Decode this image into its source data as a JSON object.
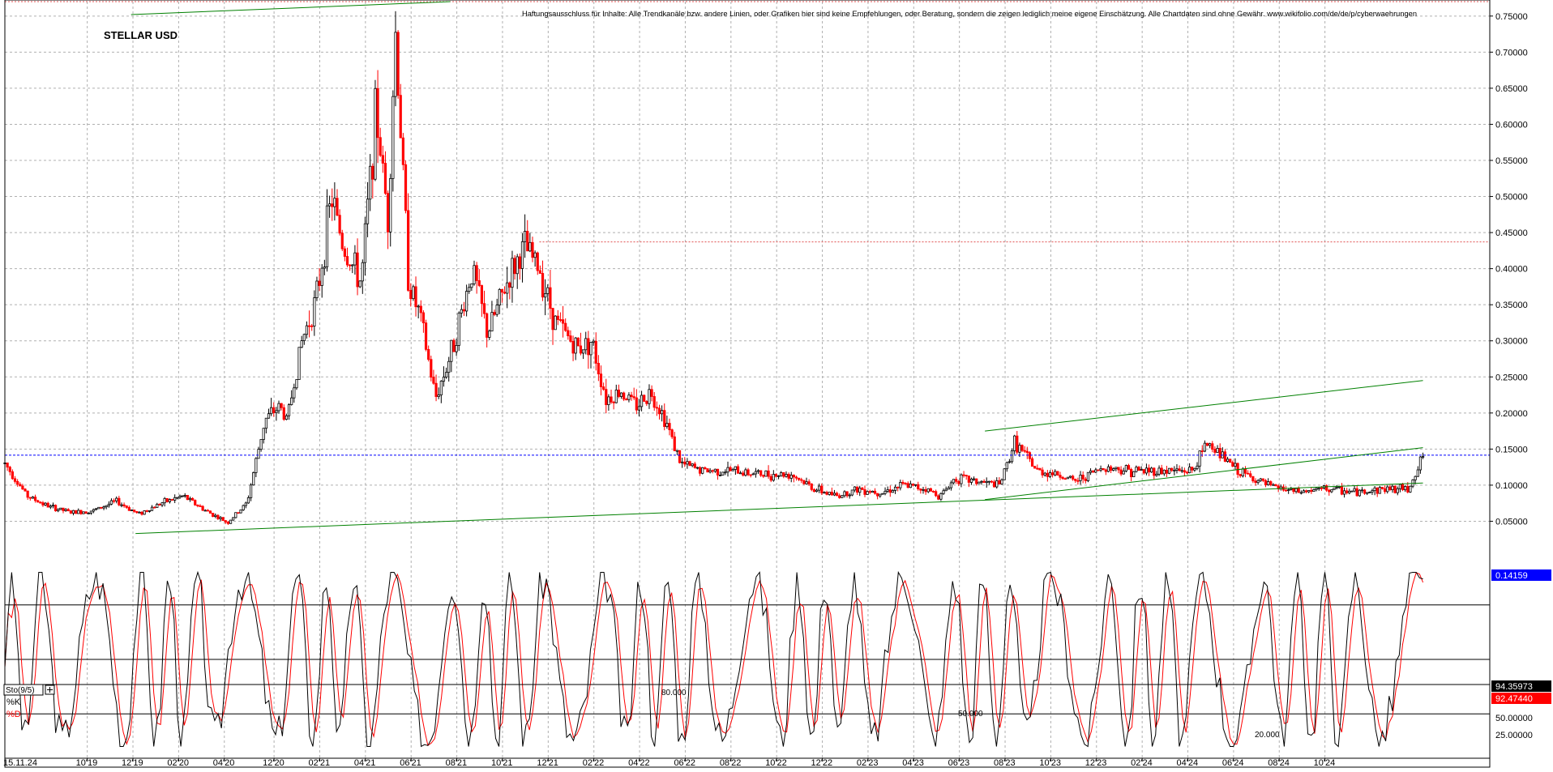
{
  "chart_data": [
    {
      "type": "candlestick",
      "title": "STELLAR USD",
      "disclaimer": "Haftungsausschluss für Inhalte: Alle Trendkanäle bzw. andere Linien, oder Grafiken hier sind keine Empfehlungen, oder Beratung, sondern die zeigen lediglich meine eigene Einschätzung. Alle Chartdaten sind ohne Gewähr. www.wikifolio.com/de/de/p/cyberwaehrungen",
      "start_date_label": "15.11.24",
      "x_tick_labels": [
        "10'19",
        "12'19",
        "02'20",
        "04'20",
        "12'20",
        "02'21",
        "04'21",
        "06'21",
        "08'21",
        "10'21",
        "12'21",
        "02'22",
        "04'22",
        "06'22",
        "08'22",
        "10'22",
        "12'22",
        "02'23",
        "04'23",
        "06'23",
        "08'23",
        "10'23",
        "12'23",
        "02'24",
        "04'24",
        "06'24",
        "08'24",
        "10'24"
      ],
      "y_tick_labels": [
        "0.75000",
        "0.70000",
        "0.65000",
        "0.60000",
        "0.55000",
        "0.50000",
        "0.45000",
        "0.40000",
        "0.35000",
        "0.30000",
        "0.25000",
        "0.20000",
        "0.15000",
        "0.10000",
        "0.05000"
      ],
      "ylim": [
        0.0,
        0.77
      ],
      "grid": true,
      "current_price_label": "0.14159",
      "current_price": 0.14159,
      "colors": {
        "up": "#000000",
        "down": "#ff0000",
        "trend": "#008000",
        "price_line": "#0000ff",
        "price_label_bg": "#0000ff",
        "resist_line": "#e05050"
      },
      "series": [
        {
          "points": [
            [
              0,
              0.13
            ],
            [
              0.015,
              0.085
            ],
            [
              0.03,
              0.07
            ],
            [
              0.045,
              0.062
            ],
            [
              0.06,
              0.065
            ],
            [
              0.075,
              0.078
            ],
            [
              0.09,
              0.06
            ],
            [
              0.105,
              0.075
            ],
            [
              0.12,
              0.085
            ],
            [
              0.135,
              0.065
            ],
            [
              0.15,
              0.048
            ],
            [
              0.163,
              0.075
            ],
            [
              0.175,
              0.19
            ],
            [
              0.185,
              0.21
            ],
            [
              0.19,
              0.19
            ],
            [
              0.2,
              0.3
            ],
            [
              0.21,
              0.36
            ],
            [
              0.22,
              0.5
            ],
            [
              0.228,
              0.43
            ],
            [
              0.24,
              0.38
            ],
            [
              0.25,
              0.62
            ],
            [
              0.258,
              0.47
            ],
            [
              0.263,
              0.73
            ],
            [
              0.272,
              0.38
            ],
            [
              0.28,
              0.33
            ],
            [
              0.29,
              0.22
            ],
            [
              0.3,
              0.28
            ],
            [
              0.315,
              0.4
            ],
            [
              0.325,
              0.31
            ],
            [
              0.34,
              0.39
            ],
            [
              0.35,
              0.43
            ],
            [
              0.36,
              0.4
            ],
            [
              0.37,
              0.33
            ],
            [
              0.385,
              0.29
            ],
            [
              0.395,
              0.3
            ],
            [
              0.405,
              0.22
            ],
            [
              0.415,
              0.23
            ],
            [
              0.425,
              0.21
            ],
            [
              0.435,
              0.23
            ],
            [
              0.445,
              0.19
            ],
            [
              0.455,
              0.13
            ],
            [
              0.47,
              0.12
            ],
            [
              0.49,
              0.12
            ],
            [
              0.51,
              0.115
            ],
            [
              0.53,
              0.115
            ],
            [
              0.545,
              0.095
            ],
            [
              0.56,
              0.085
            ],
            [
              0.575,
              0.095
            ],
            [
              0.59,
              0.09
            ],
            [
              0.605,
              0.1
            ],
            [
              0.62,
              0.095
            ],
            [
              0.63,
              0.085
            ],
            [
              0.64,
              0.11
            ],
            [
              0.67,
              0.1
            ],
            [
              0.68,
              0.16
            ],
            [
              0.695,
              0.12
            ],
            [
              0.71,
              0.115
            ],
            [
              0.72,
              0.105
            ],
            [
              0.74,
              0.125
            ],
            [
              0.76,
              0.12
            ],
            [
              0.78,
              0.12
            ],
            [
              0.8,
              0.12
            ],
            [
              0.81,
              0.16
            ],
            [
              0.83,
              0.12
            ],
            [
              0.85,
              0.1
            ],
            [
              0.87,
              0.09
            ],
            [
              0.89,
              0.095
            ],
            [
              0.91,
              0.09
            ],
            [
              0.93,
              0.095
            ],
            [
              0.945,
              0.095
            ],
            [
              0.955,
              0.14
            ]
          ]
        }
      ],
      "trend_lines": [
        {
          "name": "lower-long-trend",
          "start": [
            0.088,
            0.033
          ],
          "end": [
            0.955,
            0.103
          ]
        },
        {
          "name": "channel-upper",
          "start": [
            0.66,
            0.175
          ],
          "end": [
            0.955,
            0.245
          ]
        },
        {
          "name": "channel-mid",
          "start": [
            0.66,
            0.08
          ],
          "end": [
            0.955,
            0.152
          ]
        },
        {
          "name": "top-trend",
          "start": [
            0.085,
            0.752
          ],
          "end": [
            0.3,
            0.77
          ]
        }
      ],
      "resistance_line": {
        "value": 0.437,
        "from": 0.36
      }
    },
    {
      "type": "line",
      "indicator_label": "Sto(9/5)",
      "k_label": "%K",
      "d_label": "%D",
      "level_labels": [
        "80.000",
        "50.000",
        "20.000"
      ],
      "levels": [
        80,
        50,
        20
      ],
      "y_tick_labels": [
        "50.00000",
        "25.00000"
      ],
      "k_value_label": "94.35973",
      "d_value_label": "92.47440",
      "k_value": 94.35973,
      "d_value": 92.4744,
      "ylim": [
        0,
        100
      ],
      "colors": {
        "k": "#000000",
        "d": "#ff0000",
        "levels": "#000000"
      }
    }
  ]
}
